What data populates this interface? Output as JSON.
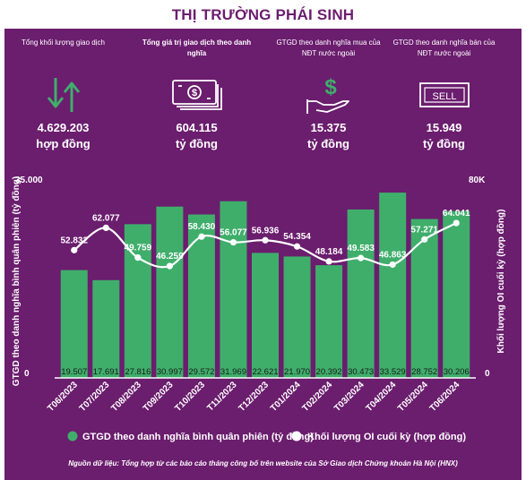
{
  "header": {
    "title": "THỊ TRƯỜNG PHÁI SINH"
  },
  "kpis": [
    {
      "label": "Tổng khối lượng giao dịch",
      "value": "4.629.203",
      "unit": "hợp đồng",
      "icon": "up-down-arrows-icon"
    },
    {
      "label": "Tổng giá trị giao dịch theo danh nghĩa",
      "value": "604.115",
      "unit": "tỷ đồng",
      "icon": "banknotes-icon"
    },
    {
      "label": "GTGD theo danh nghĩa mua của NĐT nước ngoài",
      "value": "15.375",
      "unit": "tỷ đồng",
      "icon": "hand-dollar-icon"
    },
    {
      "label": "GTGD theo danh nghĩa bán của NĐT nước ngoài",
      "value": "15.949",
      "unit": "tỷ đồng",
      "icon": "sell-sign-icon"
    }
  ],
  "chart_data": {
    "type": "bar",
    "categories": [
      "T06/2023",
      "T07/2023",
      "T08/2023",
      "T09/2023",
      "T10/2023",
      "T11/2023",
      "T12/2023",
      "T01/2024",
      "T02/2024",
      "T03/2024",
      "T04/2024",
      "T05/2024",
      "T06/2024"
    ],
    "series": [
      {
        "name": "GTGD theo danh nghĩa bình quân phiên (tỷ đồng)",
        "type": "bar",
        "axis": "left",
        "values": [
          19507,
          17691,
          27816,
          30997,
          29572,
          31969,
          22621,
          21970,
          20392,
          30473,
          33529,
          28752,
          30206
        ],
        "labels": [
          "19.507",
          "17.691",
          "27.816",
          "30.997",
          "29.572",
          "31.969",
          "22.621",
          "21.970",
          "20.392",
          "30.473",
          "33.529",
          "28.752",
          "30.206"
        ],
        "color": "#3fae6b"
      },
      {
        "name": "Khối lượng OI cuối kỳ (hợp đồng)",
        "type": "line",
        "axis": "right",
        "values": [
          52832,
          62077,
          49759,
          46259,
          58430,
          56077,
          56936,
          54354,
          48184,
          49583,
          46863,
          57271,
          64041
        ],
        "labels": [
          "52.832",
          "62.077",
          "49.759",
          "46.259",
          "58.430",
          "56.077",
          "56.936",
          "54.354",
          "48.184",
          "49.583",
          "46.863",
          "57.271",
          "64.041"
        ],
        "color": "#ffffff"
      }
    ],
    "ylabel": "GTGD theo danh nghĩa bình quân phiên (tỷ đồng)",
    "ylabel_right": "Khối lượng OI cuối kỳ (hợp đồng)",
    "yticks_left": [
      "35.000",
      "0"
    ],
    "yticks_right": [
      "80K",
      "0"
    ],
    "ylim": [
      0,
      35000
    ],
    "ylim_right": [
      0,
      80000
    ],
    "legend_position": "bottom",
    "grid": false
  },
  "footnote": "Nguồn dữ liệu: Tổng hợp từ các báo cáo tháng công bố trên website của Sở Giao dịch Chứng khoán Hà Nội (HNX)"
}
